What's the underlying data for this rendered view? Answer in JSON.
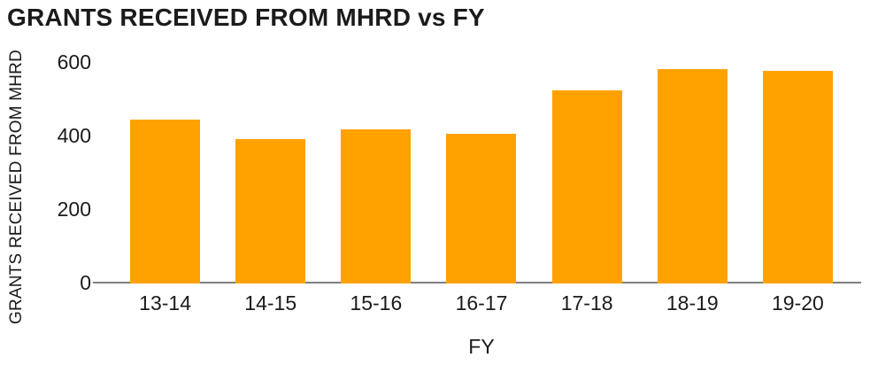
{
  "title": "GRANTS RECEIVED FROM MHRD vs FY",
  "colors": {
    "bar": "#FFA200",
    "axis_line": "#7F7F7F",
    "text": "#1B1B1B",
    "background": "#FFFFFF"
  },
  "chart_data": {
    "type": "bar",
    "title": "GRANTS RECEIVED FROM MHRD vs FY",
    "xlabel": "FY",
    "ylabel": "GRANTS RECEIVED FROM MHRD",
    "categories": [
      "13-14",
      "14-15",
      "15-16",
      "16-17",
      "17-18",
      "18-19",
      "19-20"
    ],
    "values": [
      446,
      392,
      420,
      407,
      525,
      584,
      578
    ],
    "ylim": [
      0,
      600
    ],
    "yticks": [
      0,
      200,
      400,
      600
    ],
    "grid": false,
    "legend": false,
    "bar_color": "#FFA200"
  }
}
